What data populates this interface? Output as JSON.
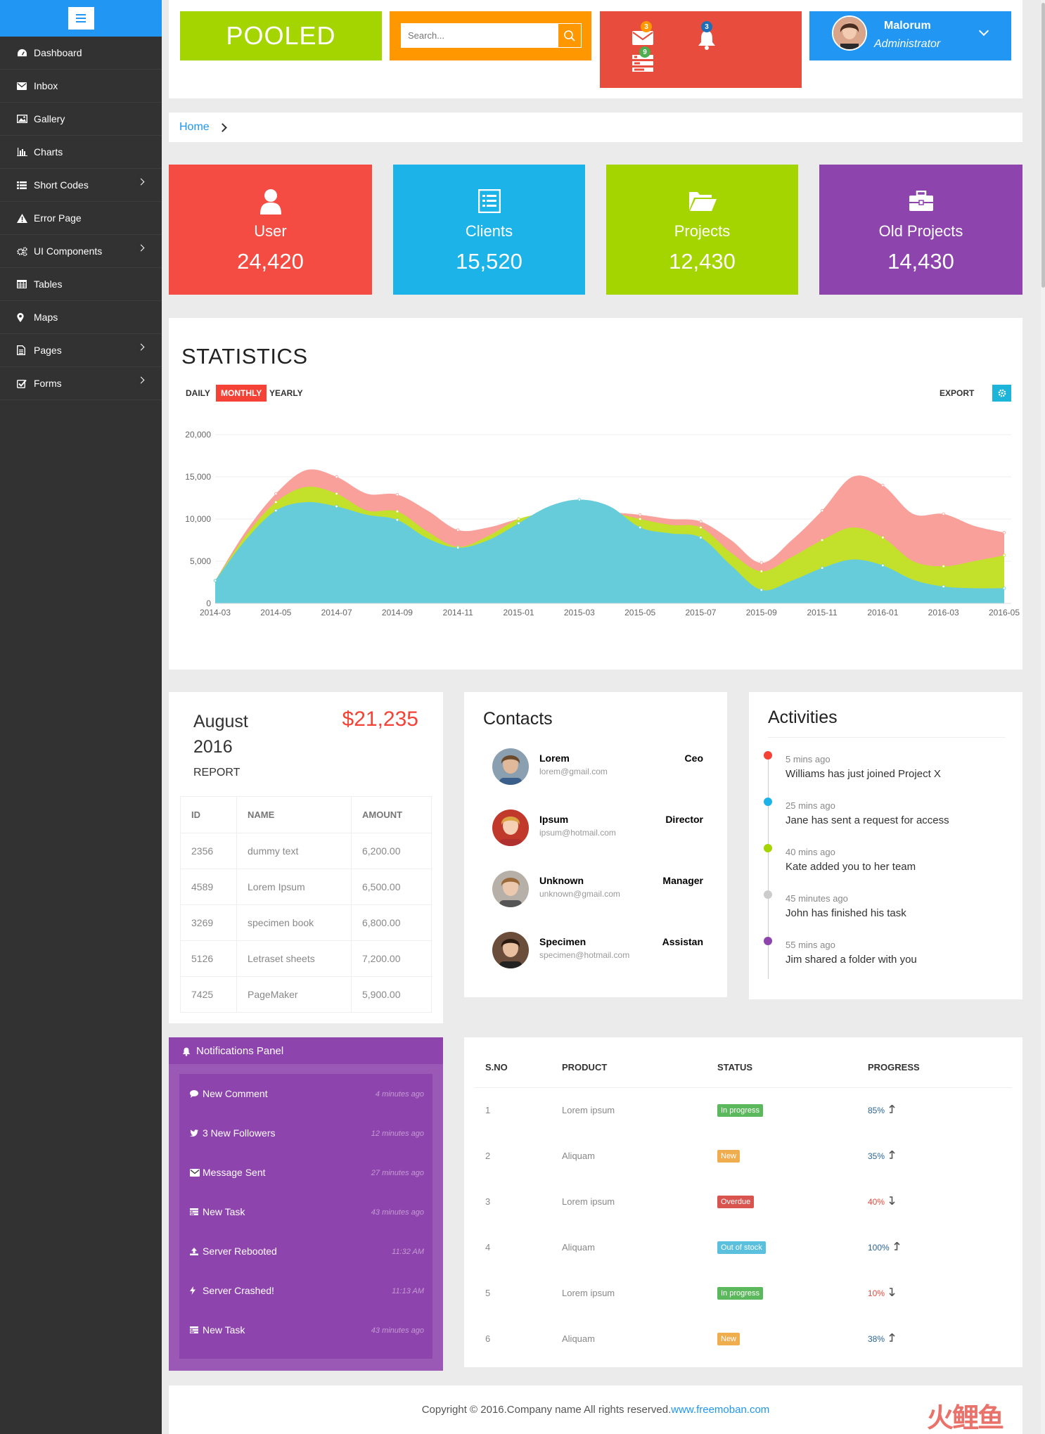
{
  "sidebar": {
    "items": [
      {
        "label": "Dashboard",
        "icon": "dashboard-icon",
        "has_submenu": false
      },
      {
        "label": "Inbox",
        "icon": "envelope-icon",
        "has_submenu": false
      },
      {
        "label": "Gallery",
        "icon": "picture-icon",
        "has_submenu": false
      },
      {
        "label": "Charts",
        "icon": "bar-chart-icon",
        "has_submenu": false
      },
      {
        "label": "Short Codes",
        "icon": "list-icon",
        "has_submenu": true
      },
      {
        "label": "Error Page",
        "icon": "warning-icon",
        "has_submenu": false
      },
      {
        "label": "UI Components",
        "icon": "cogs-icon",
        "has_submenu": true
      },
      {
        "label": "Tables",
        "icon": "table-icon",
        "has_submenu": false
      },
      {
        "label": "Maps",
        "icon": "map-marker-icon",
        "has_submenu": false
      },
      {
        "label": "Pages",
        "icon": "file-icon",
        "has_submenu": true
      },
      {
        "label": "Forms",
        "icon": "check-square-icon",
        "has_submenu": true
      }
    ]
  },
  "header": {
    "logo": "POOLED",
    "search_placeholder": "Search...",
    "mail_count": "3",
    "bell_count": "3",
    "tasks_count": "9",
    "user_name": "Malorum",
    "user_role": "Administrator"
  },
  "breadcrumb": {
    "home": "Home"
  },
  "stats": [
    {
      "label": "User",
      "value": "24,420",
      "color": "#f44b42",
      "icon": "user-icon"
    },
    {
      "label": "Clients",
      "value": "15,520",
      "color": "#1cb4e8",
      "icon": "list-alt-icon"
    },
    {
      "label": "Projects",
      "value": "12,430",
      "color": "#a4d500",
      "icon": "folder-open-icon"
    },
    {
      "label": "Old Projects",
      "value": "14,430",
      "color": "#8e44ad",
      "icon": "briefcase-icon"
    }
  ],
  "statistics": {
    "title": "STATISTICS",
    "tabs": [
      "DAILY",
      "MONTHLY",
      "YEARLY"
    ],
    "active_tab": "MONTHLY",
    "export_label": "EXPORT"
  },
  "chart_data": {
    "type": "area",
    "categories": [
      "2014-03",
      "2014-04",
      "2014-05",
      "2014-06",
      "2014-07",
      "2014-08",
      "2014-09",
      "2014-10",
      "2014-11",
      "2014-12",
      "2015-01",
      "2015-02",
      "2015-03",
      "2015-04",
      "2015-05",
      "2015-06",
      "2015-07",
      "2015-08",
      "2015-09",
      "2015-10",
      "2015-11",
      "2015-12",
      "2016-01",
      "2016-02",
      "2016-03",
      "2016-04",
      "2016-05"
    ],
    "x_tick_labels": [
      "2014-03",
      "2014-05",
      "2014-07",
      "2014-09",
      "2014-11",
      "2015-01",
      "2015-03",
      "2015-05",
      "2015-07",
      "2015-09",
      "2015-11",
      "2016-01",
      "2016-03",
      "2016-05"
    ],
    "y_ticks": [
      "0",
      "5,000",
      "10,000",
      "15,000",
      "20,000"
    ],
    "ylim": [
      0,
      20000
    ],
    "grid": true,
    "series": [
      {
        "color": "#f9a09a",
        "values": [
          2700,
          8500,
          13000,
          15800,
          15000,
          13000,
          12900,
          11000,
          8700,
          9000,
          10000,
          10500,
          11000,
          10800,
          10500,
          10000,
          9700,
          7500,
          4800,
          7500,
          11000,
          15000,
          14000,
          10600,
          10600,
          9200,
          8400
        ]
      },
      {
        "color": "#c3e02a",
        "values": [
          2700,
          8000,
          12000,
          13800,
          13000,
          11000,
          10900,
          8500,
          6700,
          8000,
          10000,
          10700,
          11000,
          10800,
          10000,
          9300,
          9000,
          6000,
          3800,
          5500,
          7500,
          9000,
          7800,
          5000,
          4400,
          5000,
          5700
        ]
      },
      {
        "color": "#66ccd9",
        "values": [
          2700,
          7500,
          11000,
          12000,
          11500,
          10500,
          9900,
          7700,
          6600,
          7500,
          9500,
          11500,
          12300,
          11500,
          9000,
          8300,
          7800,
          4500,
          1600,
          2700,
          4200,
          5200,
          4500,
          2800,
          2000,
          1800,
          1800
        ]
      }
    ]
  },
  "report": {
    "month": "August 2016",
    "amount": "$21,235",
    "label": "REPORT",
    "columns": [
      "ID",
      "NAME",
      "AMOUNT"
    ],
    "rows": [
      [
        "2356",
        "dummy text",
        "6,200.00"
      ],
      [
        "4589",
        "Lorem Ipsum",
        "6,500.00"
      ],
      [
        "3269",
        "specimen book",
        "6,800.00"
      ],
      [
        "5126",
        "Letraset sheets",
        "7,200.00"
      ],
      [
        "7425",
        "PageMaker",
        "5,900.00"
      ]
    ]
  },
  "contacts": {
    "title": "Contacts",
    "items": [
      {
        "name": "Lorem",
        "email": "lorem@gmail.com",
        "role": "Ceo"
      },
      {
        "name": "Ipsum",
        "email": "ipsum@hotmail.com",
        "role": "Director"
      },
      {
        "name": "Unknown",
        "email": "unknown@gmail.com",
        "role": "Manager"
      },
      {
        "name": "Specimen",
        "email": "specimen@hotmail.com",
        "role": "Assistan"
      }
    ]
  },
  "activities": {
    "title": "Activities",
    "items": [
      {
        "time": "5 mins ago",
        "text": "Williams has just joined Project X",
        "color": "#f44336"
      },
      {
        "time": "25 mins ago",
        "text": "Jane has sent a request for access",
        "color": "#1cb4e8"
      },
      {
        "time": "40 mins ago",
        "text": "Kate added you to her team",
        "color": "#a4d500"
      },
      {
        "time": "45 minutes ago",
        "text": "John has finished his task",
        "color": "#cccccc"
      },
      {
        "time": "55 mins ago",
        "text": "Jim shared a folder with you",
        "color": "#8e44ad"
      }
    ]
  },
  "notifications": {
    "title": "Notifications Panel",
    "items": [
      {
        "label": "New Comment",
        "time": "4 minutes ago",
        "icon": "comment-icon"
      },
      {
        "label": "3 New Followers",
        "time": "12 minutes ago",
        "icon": "twitter-icon"
      },
      {
        "label": "Message Sent",
        "time": "27 minutes ago",
        "icon": "envelope-icon"
      },
      {
        "label": "New Task",
        "time": "43 minutes ago",
        "icon": "tasks-icon"
      },
      {
        "label": "Server Rebooted",
        "time": "11:32 AM",
        "icon": "upload-icon"
      },
      {
        "label": "Server Crashed!",
        "time": "11:13 AM",
        "icon": "bolt-icon"
      },
      {
        "label": "New Task",
        "time": "43 minutes ago",
        "icon": "tasks-icon"
      }
    ]
  },
  "orders": {
    "columns": [
      "S.NO",
      "PRODUCT",
      "STATUS",
      "PROGRESS"
    ],
    "rows": [
      {
        "sno": "1",
        "product": "Lorem ipsum",
        "status": "In progress",
        "status_color": "#5cb85c",
        "progress": "85%",
        "progress_color": "#2a6496",
        "trend": "up"
      },
      {
        "sno": "2",
        "product": "Aliquam",
        "status": "New",
        "status_color": "#f0ad4e",
        "progress": "35%",
        "progress_color": "#2a6496",
        "trend": "up"
      },
      {
        "sno": "3",
        "product": "Lorem ipsum",
        "status": "Overdue",
        "status_color": "#d9534f",
        "progress": "40%",
        "progress_color": "#e74c3c",
        "trend": "down"
      },
      {
        "sno": "4",
        "product": "Aliquam",
        "status": "Out of stock",
        "status_color": "#5bc0de",
        "progress": "100%",
        "progress_color": "#2a6496",
        "trend": "up"
      },
      {
        "sno": "5",
        "product": "Lorem ipsum",
        "status": "In progress",
        "status_color": "#5cb85c",
        "progress": "10%",
        "progress_color": "#e74c3c",
        "trend": "down"
      },
      {
        "sno": "6",
        "product": "Aliquam",
        "status": "New",
        "status_color": "#f0ad4e",
        "progress": "38%",
        "progress_color": "#2a6496",
        "trend": "up"
      }
    ]
  },
  "footer": {
    "text": "Copyright © 2016.Company name All rights reserved.",
    "link": "www.freemoban.com"
  },
  "watermark": "火鲤鱼"
}
